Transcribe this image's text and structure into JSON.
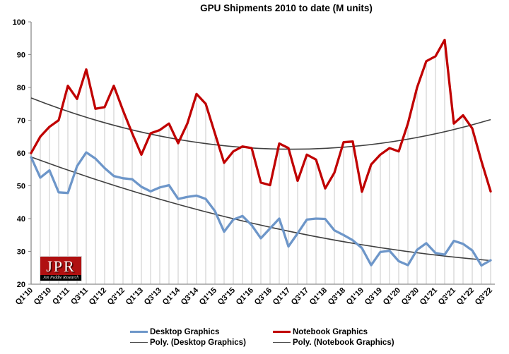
{
  "title": "GPU Shipments 2010 to date (M units)",
  "logo": {
    "text": "JPR",
    "subtext": "Jon Peddie Research"
  },
  "legend": [
    {
      "label": "Desktop Graphics",
      "swatch": "series",
      "color": "#6d96c9"
    },
    {
      "label": "Notebook Graphics",
      "swatch": "series",
      "color": "#c00000"
    },
    {
      "label": "Poly. (Desktop Graphics)",
      "swatch": "trend",
      "color": "#404040"
    },
    {
      "label": "Poly. (Notebook Graphics)",
      "swatch": "trend",
      "color": "#404040"
    }
  ],
  "chart_data": {
    "type": "line",
    "title": "GPU Shipments 2010 to date (M units)",
    "xlabel": "",
    "ylabel": "",
    "ylim": [
      20,
      100
    ],
    "y_ticks": [
      20,
      30,
      40,
      50,
      60,
      70,
      80,
      90,
      100
    ],
    "grid": "vertical-drop-lines",
    "legend_position": "bottom",
    "x_tick_labels": [
      "Q1'10",
      "Q3'10",
      "Q1'11",
      "Q3'11",
      "Q1'12",
      "Q3'12",
      "Q1'13",
      "Q3'13",
      "Q1'14",
      "Q3'14",
      "Q1'15",
      "Q3'15",
      "Q1'16",
      "Q3'16",
      "Q1'17",
      "Q3'17",
      "Q1'18",
      "Q3'18",
      "Q1'19",
      "Q3'19",
      "Q1'20",
      "Q3'20",
      "Q1'21",
      "Q3'21",
      "Q1'22",
      "Q3'22"
    ],
    "categories": [
      "Q1'10",
      "Q2'10",
      "Q3'10",
      "Q4'10",
      "Q1'11",
      "Q2'11",
      "Q3'11",
      "Q4'11",
      "Q1'12",
      "Q2'12",
      "Q3'12",
      "Q4'12",
      "Q1'13",
      "Q2'13",
      "Q3'13",
      "Q4'13",
      "Q1'14",
      "Q2'14",
      "Q3'14",
      "Q4'14",
      "Q1'15",
      "Q2'15",
      "Q3'15",
      "Q4'15",
      "Q1'16",
      "Q2'16",
      "Q3'16",
      "Q4'16",
      "Q1'17",
      "Q2'17",
      "Q3'17",
      "Q4'17",
      "Q1'18",
      "Q2'18",
      "Q3'18",
      "Q4'18",
      "Q1'19",
      "Q2'19",
      "Q3'19",
      "Q4'19",
      "Q1'20",
      "Q2'20",
      "Q3'20",
      "Q4'20",
      "Q1'21",
      "Q2'21",
      "Q3'21",
      "Q4'21",
      "Q1'22",
      "Q2'22",
      "Q3'22"
    ],
    "series": [
      {
        "name": "Desktop Graphics",
        "color": "#6d96c9",
        "values": [
          58.7,
          52.5,
          54.7,
          48,
          47.8,
          56,
          60.2,
          58.3,
          55.4,
          53,
          52.3,
          52,
          49.7,
          48.3,
          49.5,
          50.2,
          46,
          46.6,
          47,
          46,
          42.3,
          36,
          39.7,
          40.8,
          38,
          34,
          37,
          40,
          31.5,
          35.5,
          39.7,
          40,
          39.9,
          36.4,
          35,
          33.4,
          31,
          25.8,
          29.8,
          30.2,
          27,
          25.8,
          30.5,
          32.5,
          29.5,
          29,
          33.2,
          32.3,
          30.3,
          25.7,
          27.3
        ]
      },
      {
        "name": "Notebook Graphics",
        "color": "#c00000",
        "values": [
          60,
          65,
          68,
          70,
          80.5,
          76.5,
          85.5,
          73.5,
          74,
          80.5,
          73,
          66,
          59.5,
          66,
          67,
          69,
          63,
          69,
          78,
          75,
          66,
          57,
          60.5,
          62,
          61.5,
          51,
          50.2,
          62.9,
          61.5,
          51.5,
          59.5,
          58,
          49.2,
          54,
          63.3,
          63.5,
          48.2,
          56.5,
          59.5,
          61.5,
          60.5,
          69,
          80,
          88,
          89.5,
          94.5,
          69,
          71.5,
          67.5,
          57.5,
          48.3
        ]
      }
    ],
    "trendlines": [
      {
        "name": "Poly. (Desktop Graphics)",
        "color": "#404040",
        "start": 58.8,
        "mid_control": 33.0,
        "end": 27.2
      },
      {
        "name": "Poly. (Notebook Graphics)",
        "color": "#404040",
        "start": 76.8,
        "mid_control": 49.3,
        "end": 70.2
      }
    ]
  }
}
